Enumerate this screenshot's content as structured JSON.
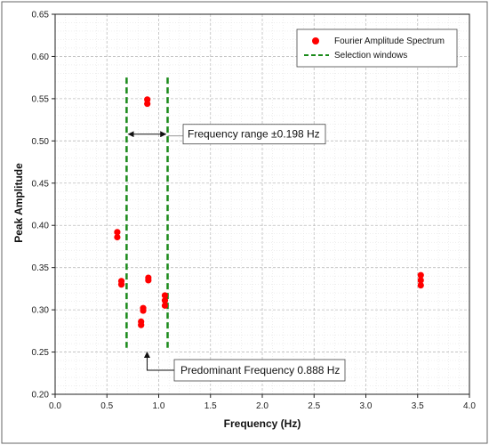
{
  "chart_data": {
    "type": "scatter",
    "xlabel": "Frequency (Hz)",
    "ylabel": "Peak Amplitude",
    "xlim": [
      0.0,
      4.0
    ],
    "ylim": [
      0.2,
      0.65
    ],
    "x_ticks": [
      "0.0",
      "0.5",
      "1.0",
      "1.5",
      "2.0",
      "2.5",
      "3.0",
      "3.5",
      "4.0"
    ],
    "y_ticks": [
      "0.20",
      "0.25",
      "0.30",
      "0.35",
      "0.40",
      "0.45",
      "0.50",
      "0.55",
      "0.60",
      "0.65"
    ],
    "grid": true,
    "legend_position": "top-right",
    "series": [
      {
        "name": "Fourier Amplitude Spectrum",
        "color": "#ff0000",
        "points": [
          {
            "x": 0.6,
            "y": 0.392
          },
          {
            "x": 0.6,
            "y": 0.386
          },
          {
            "x": 0.64,
            "y": 0.334
          },
          {
            "x": 0.64,
            "y": 0.33
          },
          {
            "x": 0.85,
            "y": 0.302
          },
          {
            "x": 0.85,
            "y": 0.299
          },
          {
            "x": 0.83,
            "y": 0.286
          },
          {
            "x": 0.83,
            "y": 0.282
          },
          {
            "x": 0.89,
            "y": 0.549
          },
          {
            "x": 0.89,
            "y": 0.544
          },
          {
            "x": 0.9,
            "y": 0.338
          },
          {
            "x": 0.9,
            "y": 0.335
          },
          {
            "x": 1.06,
            "y": 0.317
          },
          {
            "x": 1.06,
            "y": 0.311
          },
          {
            "x": 1.06,
            "y": 0.305
          },
          {
            "x": 3.53,
            "y": 0.341
          },
          {
            "x": 3.53,
            "y": 0.335
          },
          {
            "x": 3.53,
            "y": 0.329
          }
        ]
      },
      {
        "name": "Selection windows",
        "color": "#1a8a1a",
        "style": "dashed",
        "lines": [
          {
            "x": 0.69,
            "y_range": [
              0.255,
              0.575
            ]
          },
          {
            "x": 1.086,
            "y_range": [
              0.255,
              0.575
            ]
          }
        ]
      }
    ],
    "annotations": [
      {
        "text": "Frequency range ±0.198 Hz",
        "arrow": "double",
        "x_range": [
          0.69,
          1.086
        ],
        "y": 0.508
      },
      {
        "text": "Predominant Frequency 0.888 Hz",
        "arrow_to": {
          "x": 0.888,
          "y": 0.253
        }
      }
    ]
  }
}
